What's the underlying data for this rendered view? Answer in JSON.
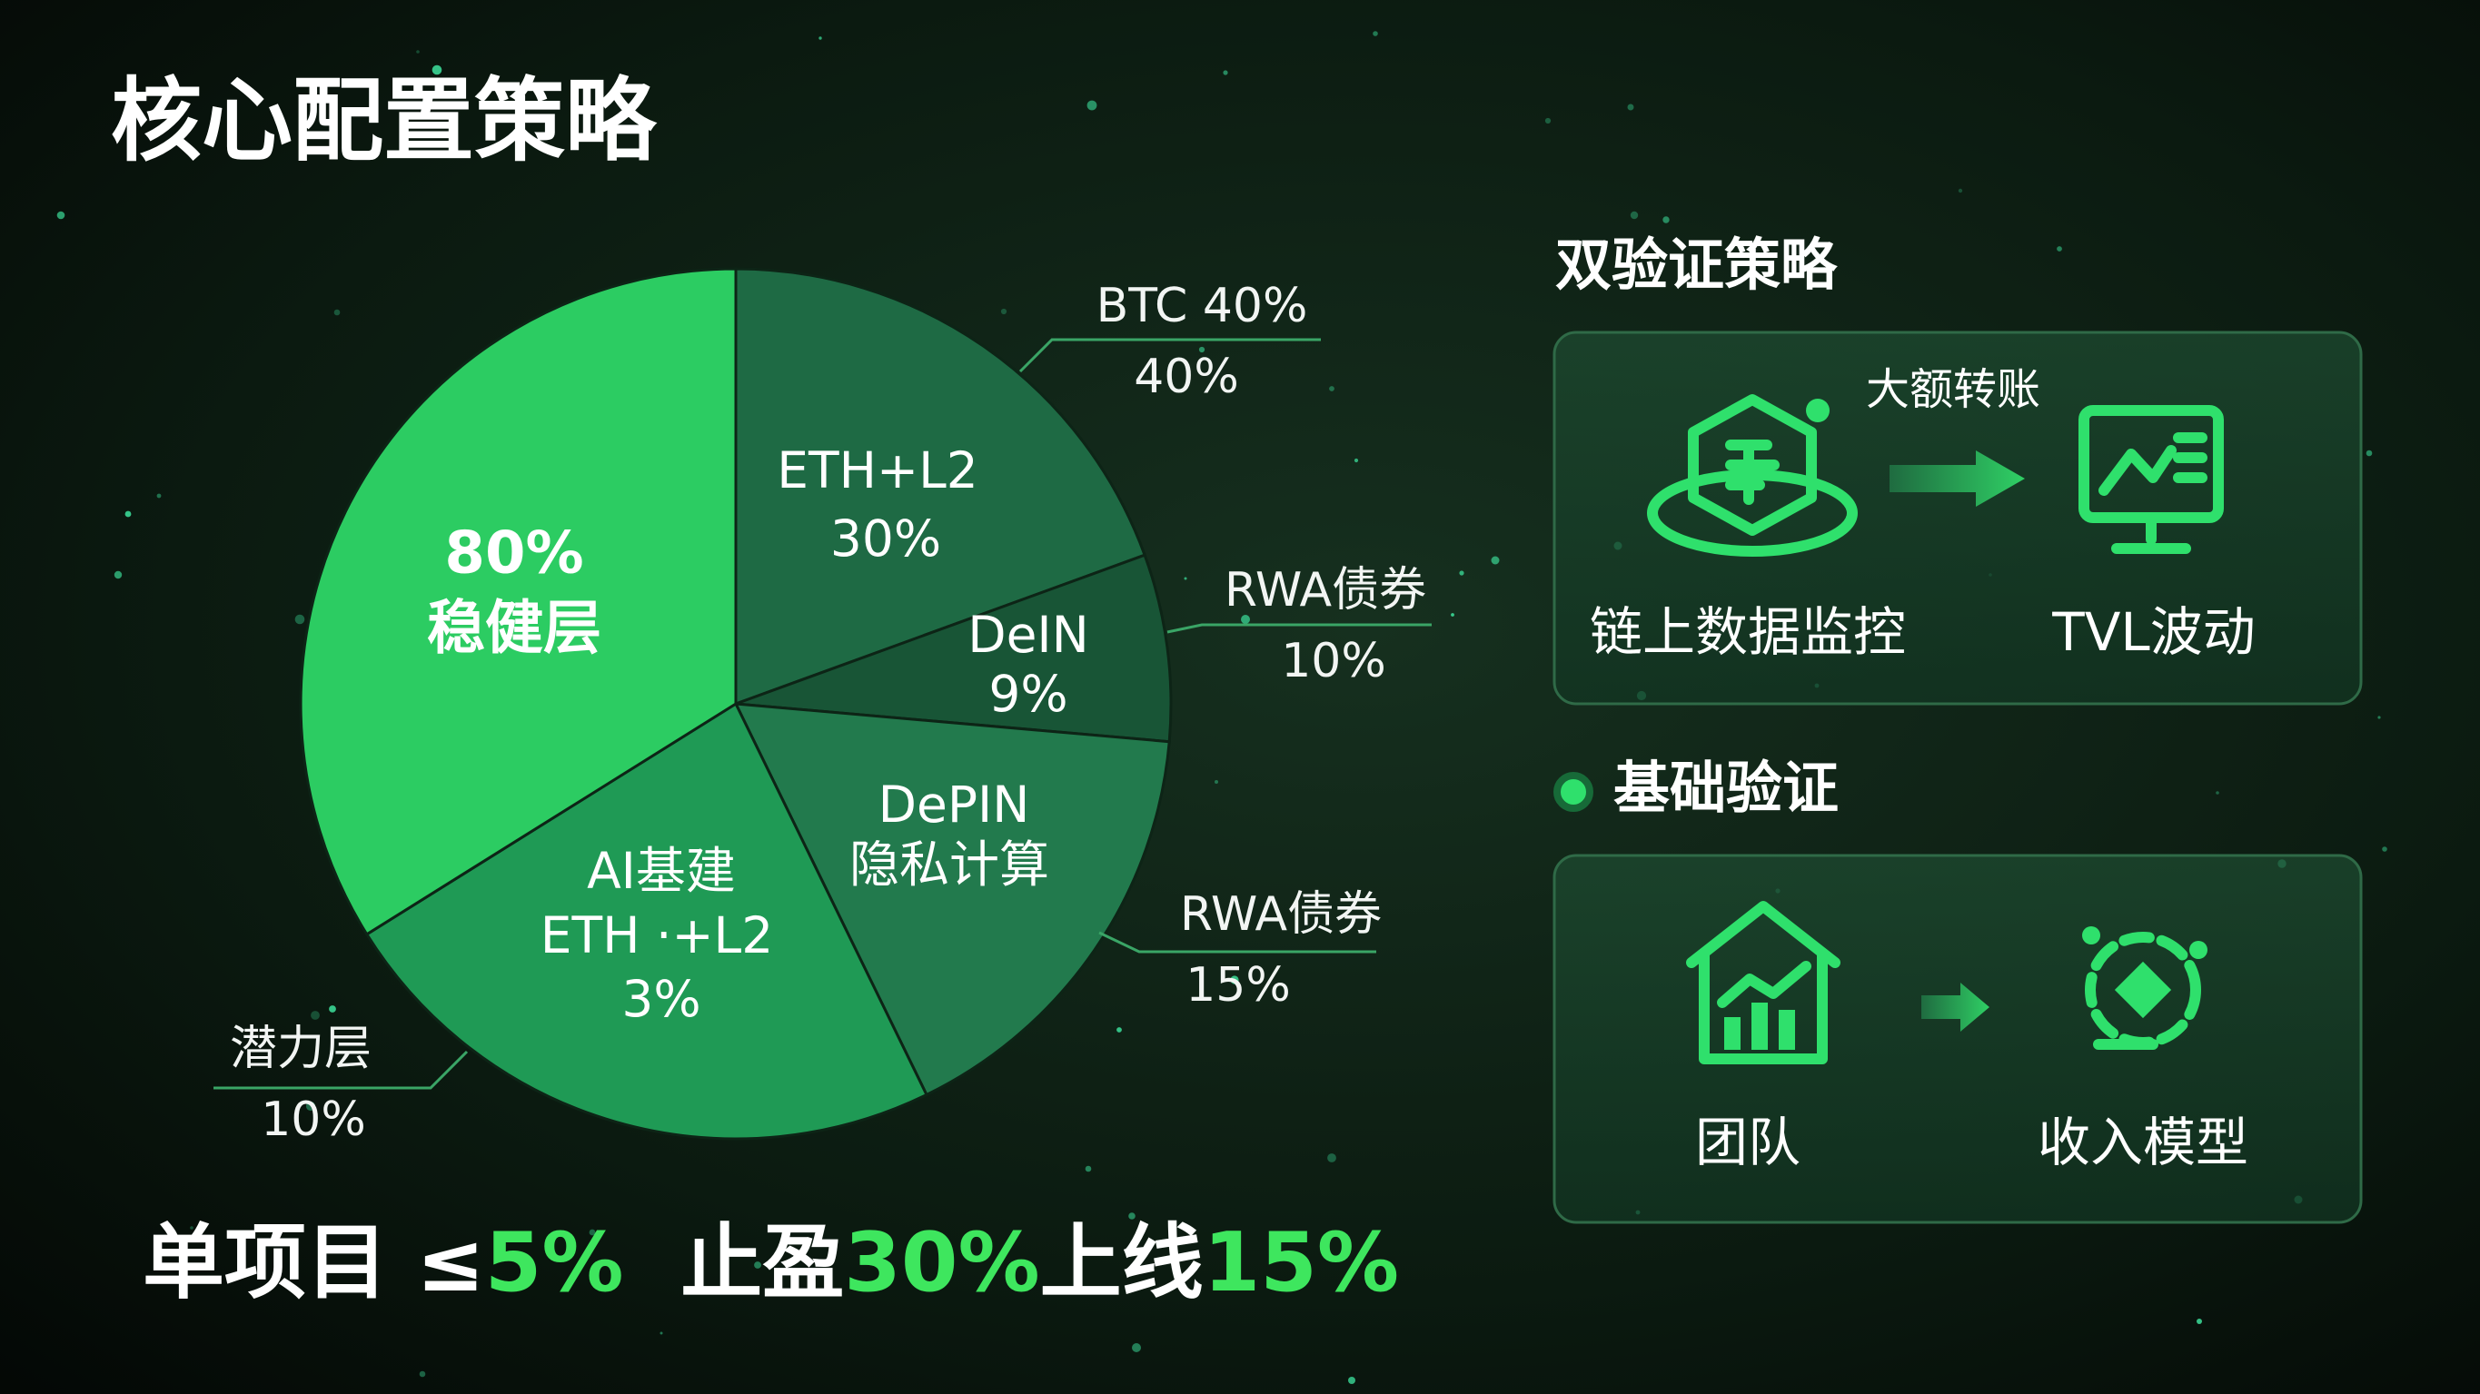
{
  "title": "核心配置策略",
  "pie": {
    "slices": [
      {
        "lines": [
          "ETH+L2",
          "30%"
        ]
      },
      {
        "lines": [
          "DeIN",
          "9%"
        ]
      },
      {
        "lines": [
          "DePIN",
          "隐私计算"
        ]
      },
      {
        "lines": [
          "AI基建",
          "ETH ·+L2",
          "3%"
        ]
      },
      {
        "lines": [
          "80%",
          "稳健层"
        ]
      }
    ],
    "callouts": [
      {
        "lines": [
          "BTC 40%",
          "40%"
        ]
      },
      {
        "lines": [
          "RWA债券",
          "10%"
        ]
      },
      {
        "lines": [
          "RWA债券",
          "15%"
        ]
      },
      {
        "lines": [
          "潜力层",
          "10%"
        ]
      }
    ]
  },
  "dual_check": {
    "title": "双验证策略",
    "trigger": "大额转账",
    "items": [
      "链上数据监控",
      "TVL波动"
    ]
  },
  "basic_check": {
    "title": "基础验证",
    "items": [
      "团队",
      "收入模型"
    ]
  },
  "footer": [
    {
      "text": "单项目 ≤",
      "highlight": false
    },
    {
      "text": "5%",
      "highlight": true
    },
    {
      "text": "  止盈",
      "highlight": false
    },
    {
      "text": "30%",
      "highlight": true
    },
    {
      "text": "上线",
      "highlight": false
    },
    {
      "text": "15%",
      "highlight": true
    }
  ]
}
